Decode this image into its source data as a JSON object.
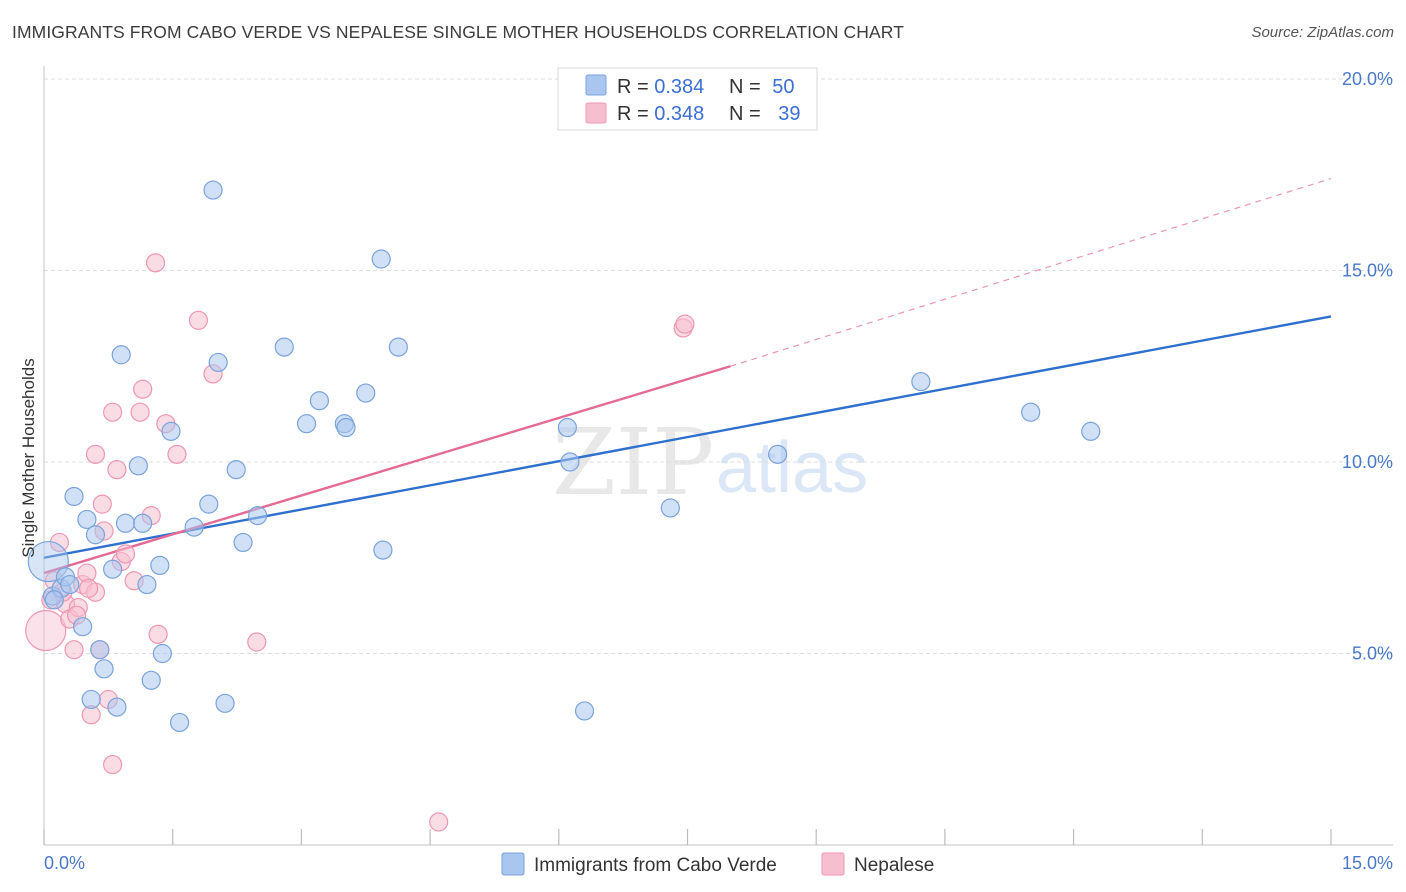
{
  "title": "IMMIGRANTS FROM CABO VERDE VS NEPALESE SINGLE MOTHER HOUSEHOLDS CORRELATION CHART",
  "source": "Source: ZipAtlas.com",
  "watermark": {
    "zip": "ZIP",
    "atlas": "atlas"
  },
  "colors": {
    "blue_fill": "#a9c6ee",
    "blue_stroke": "#7aa3dc",
    "blue_line": "#2f6fcd",
    "pink_fill": "#f6bfd0",
    "pink_stroke": "#ee97b3",
    "pink_line": "#e36b95",
    "grid": "#dddddd",
    "tick_text": "#4a78c8"
  },
  "legend_top": [
    {
      "r_label": "R = ",
      "r_value": "0.384",
      "n_label": "N = ",
      "n_value": "50"
    },
    {
      "r_label": "R = ",
      "r_value": "0.348",
      "n_label": "N = ",
      "n_value": "39"
    }
  ],
  "chart_data": {
    "type": "scatter",
    "title": "IMMIGRANTS FROM CABO VERDE VS NEPALESE SINGLE MOTHER HOUSEHOLDS CORRELATION CHART",
    "xlabel": "",
    "ylabel": "Single Mother Households",
    "xlim": [
      0,
      15
    ],
    "ylim": [
      0,
      20
    ],
    "x_tick_labels": [
      "0.0%",
      "15.0%"
    ],
    "y_ticks": [
      5,
      10,
      15,
      20
    ],
    "y_tick_labels": [
      "5.0%",
      "10.0%",
      "15.0%",
      "20.0%"
    ],
    "grid": true,
    "series": [
      {
        "name": "Immigrants from Cabo Verde",
        "r": 0.384,
        "n": 50,
        "trend": {
          "x0": 0.0,
          "y0": 7.5,
          "x1": 15.0,
          "y1": 13.8
        },
        "points": [
          {
            "x": 0.05,
            "y": 7.4,
            "big": true
          },
          {
            "x": 0.1,
            "y": 6.5
          },
          {
            "x": 0.2,
            "y": 6.7
          },
          {
            "x": 0.25,
            "y": 7.0
          },
          {
            "x": 0.3,
            "y": 6.8
          },
          {
            "x": 0.35,
            "y": 9.1
          },
          {
            "x": 0.45,
            "y": 5.7
          },
          {
            "x": 0.5,
            "y": 8.5
          },
          {
            "x": 0.55,
            "y": 3.8
          },
          {
            "x": 0.6,
            "y": 8.1
          },
          {
            "x": 0.65,
            "y": 5.1
          },
          {
            "x": 0.7,
            "y": 4.6
          },
          {
            "x": 0.8,
            "y": 7.2
          },
          {
            "x": 0.85,
            "y": 3.6
          },
          {
            "x": 0.9,
            "y": 12.8
          },
          {
            "x": 0.95,
            "y": 8.4
          },
          {
            "x": 1.1,
            "y": 9.9
          },
          {
            "x": 1.15,
            "y": 8.4
          },
          {
            "x": 1.2,
            "y": 6.8
          },
          {
            "x": 1.25,
            "y": 4.3
          },
          {
            "x": 1.35,
            "y": 7.3
          },
          {
            "x": 1.38,
            "y": 5.0
          },
          {
            "x": 1.48,
            "y": 10.8
          },
          {
            "x": 1.58,
            "y": 3.2
          },
          {
            "x": 1.75,
            "y": 8.3
          },
          {
            "x": 1.92,
            "y": 8.9
          },
          {
            "x": 1.97,
            "y": 17.1
          },
          {
            "x": 2.03,
            "y": 12.6
          },
          {
            "x": 2.11,
            "y": 3.7
          },
          {
            "x": 2.24,
            "y": 9.8
          },
          {
            "x": 2.32,
            "y": 7.9
          },
          {
            "x": 2.49,
            "y": 8.6
          },
          {
            "x": 2.8,
            "y": 13.0
          },
          {
            "x": 3.06,
            "y": 11.0
          },
          {
            "x": 3.21,
            "y": 11.6
          },
          {
            "x": 3.5,
            "y": 11.0
          },
          {
            "x": 3.52,
            "y": 10.9
          },
          {
            "x": 3.75,
            "y": 11.8
          },
          {
            "x": 3.93,
            "y": 15.3
          },
          {
            "x": 3.95,
            "y": 7.7
          },
          {
            "x": 4.13,
            "y": 13.0
          },
          {
            "x": 6.1,
            "y": 10.9
          },
          {
            "x": 6.13,
            "y": 10.0
          },
          {
            "x": 6.3,
            "y": 3.5
          },
          {
            "x": 7.3,
            "y": 8.8
          },
          {
            "x": 8.55,
            "y": 10.2
          },
          {
            "x": 10.22,
            "y": 12.1
          },
          {
            "x": 11.5,
            "y": 11.3
          },
          {
            "x": 12.2,
            "y": 10.8
          },
          {
            "x": 0.12,
            "y": 6.4
          }
        ]
      },
      {
        "name": "Nepalese",
        "r": 0.348,
        "n": 39,
        "trend": {
          "x0": 0.0,
          "y0": 7.1,
          "x1": 8.0,
          "y1": 12.5,
          "dash_x1": 15.0,
          "dash_y1": 17.4
        },
        "points": [
          {
            "x": 0.02,
            "y": 5.6,
            "big": true
          },
          {
            "x": 0.08,
            "y": 6.4
          },
          {
            "x": 0.12,
            "y": 6.9
          },
          {
            "x": 0.18,
            "y": 7.9
          },
          {
            "x": 0.25,
            "y": 6.3
          },
          {
            "x": 0.3,
            "y": 5.9
          },
          {
            "x": 0.35,
            "y": 5.1
          },
          {
            "x": 0.4,
            "y": 6.2
          },
          {
            "x": 0.45,
            "y": 6.8
          },
          {
            "x": 0.5,
            "y": 7.1
          },
          {
            "x": 0.55,
            "y": 3.4
          },
          {
            "x": 0.6,
            "y": 6.6
          },
          {
            "x": 0.6,
            "y": 10.2
          },
          {
            "x": 0.65,
            "y": 5.1
          },
          {
            "x": 0.68,
            "y": 8.9
          },
          {
            "x": 0.7,
            "y": 8.2
          },
          {
            "x": 0.75,
            "y": 3.8
          },
          {
            "x": 0.8,
            "y": 11.3
          },
          {
            "x": 0.8,
            "y": 2.1
          },
          {
            "x": 0.85,
            "y": 9.8
          },
          {
            "x": 0.9,
            "y": 7.4
          },
          {
            "x": 0.95,
            "y": 7.6
          },
          {
            "x": 1.05,
            "y": 6.9
          },
          {
            "x": 1.12,
            "y": 11.3
          },
          {
            "x": 1.15,
            "y": 11.9
          },
          {
            "x": 1.25,
            "y": 8.6
          },
          {
            "x": 1.3,
            "y": 15.2
          },
          {
            "x": 1.33,
            "y": 5.5
          },
          {
            "x": 1.42,
            "y": 11.0
          },
          {
            "x": 1.55,
            "y": 10.2
          },
          {
            "x": 1.8,
            "y": 13.7
          },
          {
            "x": 1.97,
            "y": 12.3
          },
          {
            "x": 2.48,
            "y": 5.3
          },
          {
            "x": 4.6,
            "y": 0.6
          },
          {
            "x": 7.45,
            "y": 13.5
          },
          {
            "x": 7.47,
            "y": 13.6
          },
          {
            "x": 0.22,
            "y": 6.6
          },
          {
            "x": 0.52,
            "y": 6.7
          },
          {
            "x": 0.38,
            "y": 6.0
          }
        ]
      }
    ]
  }
}
